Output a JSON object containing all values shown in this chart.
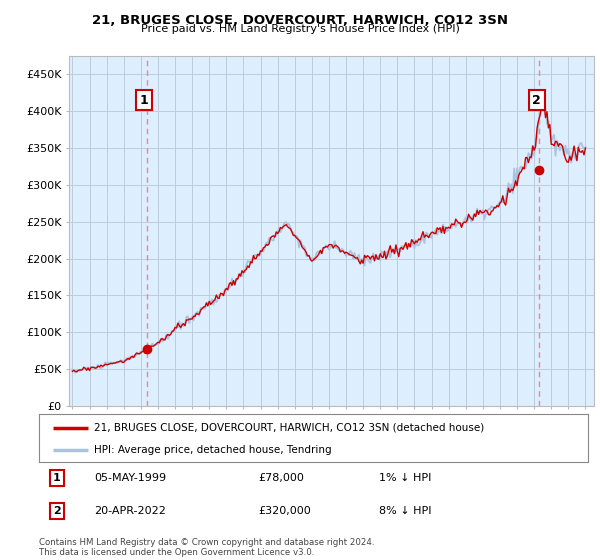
{
  "title": "21, BRUGES CLOSE, DOVERCOURT, HARWICH, CO12 3SN",
  "subtitle": "Price paid vs. HM Land Registry's House Price Index (HPI)",
  "ylabel_ticks": [
    "£0",
    "£50K",
    "£100K",
    "£150K",
    "£200K",
    "£250K",
    "£300K",
    "£350K",
    "£400K",
    "£450K"
  ],
  "ytick_values": [
    0,
    50000,
    100000,
    150000,
    200000,
    250000,
    300000,
    350000,
    400000,
    450000
  ],
  "ylim": [
    0,
    475000
  ],
  "xlim_start": 1994.8,
  "xlim_end": 2025.5,
  "legend_line1": "21, BRUGES CLOSE, DOVERCOURT, HARWICH, CO12 3SN (detached house)",
  "legend_line2": "HPI: Average price, detached house, Tendring",
  "sale1_label": "1",
  "sale1_date": "05-MAY-1999",
  "sale1_price": "£78,000",
  "sale1_note": "1% ↓ HPI",
  "sale1_x": 1999.35,
  "sale1_y": 78000,
  "sale2_label": "2",
  "sale2_date": "20-APR-2022",
  "sale2_price": "£320,000",
  "sale2_note": "8% ↓ HPI",
  "sale2_x": 2022.3,
  "sale2_y": 320000,
  "footer": "Contains HM Land Registry data © Crown copyright and database right 2024.\nThis data is licensed under the Open Government Licence v3.0.",
  "hpi_color": "#aac4e0",
  "price_color": "#cc0000",
  "marker_color": "#cc0000",
  "dashed_color": "#ee8888",
  "bg_color": "#ffffff",
  "plot_bg_color": "#ddeeff",
  "grid_color": "#bbccdd",
  "annotation_box_color": "#cc0000"
}
